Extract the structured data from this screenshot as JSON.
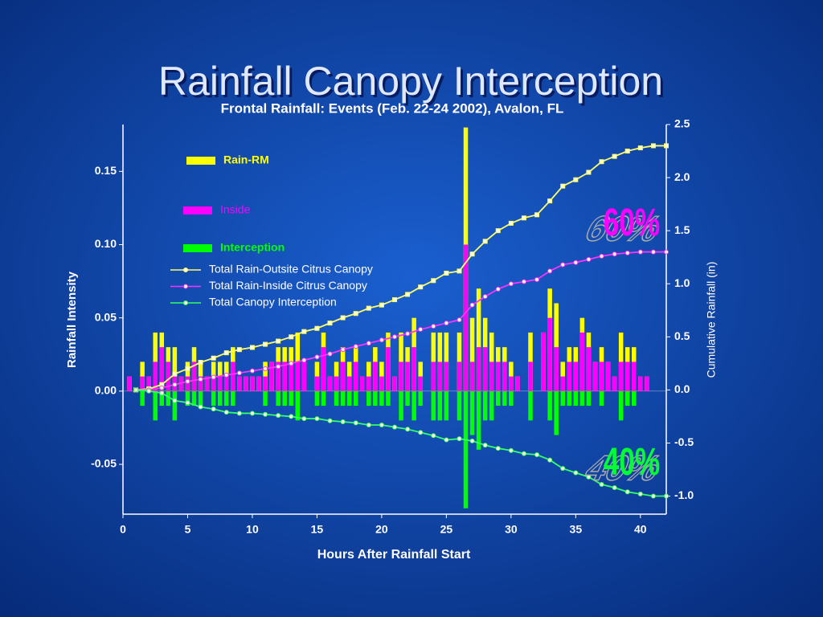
{
  "slide_title": "Rainfall Canopy Interception",
  "chart_data": {
    "type": "bar",
    "title": "Frontal Rainfall: Events (Feb. 22-24 2002), Avalon, FL",
    "x_label": "Hours After Rainfall Start",
    "y_label": "Rainfall Intensity",
    "y2_label": "Cumulative Rainfall (in)",
    "xlim": [
      0,
      42
    ],
    "xticks": [
      0,
      5,
      10,
      15,
      20,
      25,
      30,
      35,
      40
    ],
    "ylim": [
      -0.084,
      0.182
    ],
    "yticks": [
      -0.05,
      {
        "value": 0,
        "label": "0.00"
      },
      0.05,
      {
        "value": 0.1,
        "label": "0.10"
      },
      0.15
    ],
    "y2lim": [
      -1.17,
      2.5
    ],
    "y2ticks": [
      {
        "value": -1,
        "label": "-1.0"
      },
      -0.5,
      {
        "value": 0,
        "label": "0.0"
      },
      0.5,
      {
        "value": 1,
        "label": "1.0"
      },
      1.5,
      {
        "value": 2,
        "label": "2.0"
      },
      2.5
    ],
    "x": [
      0.5,
      1,
      1.5,
      2,
      2.5,
      3,
      3.5,
      4,
      4.5,
      5,
      5.5,
      6,
      6.5,
      7,
      7.5,
      8,
      8.5,
      9,
      9.5,
      10,
      10.5,
      11,
      11.5,
      12,
      12.5,
      13,
      13.5,
      14,
      14.5,
      15,
      15.5,
      16,
      16.5,
      17,
      17.5,
      18,
      18.5,
      19,
      19.5,
      20,
      20.5,
      21,
      21.5,
      22,
      22.5,
      23,
      23.5,
      24,
      24.5,
      25,
      25.5,
      26,
      26.5,
      27,
      27.5,
      28,
      28.5,
      29,
      29.5,
      30,
      30.5,
      31,
      31.5,
      32,
      32.5,
      33,
      33.5,
      34,
      34.5,
      35,
      35.5,
      36,
      36.5,
      37,
      37.5,
      38,
      38.5,
      39,
      39.5,
      40,
      40.5,
      41
    ],
    "series": [
      {
        "name": "Rain-RM",
        "type": "bar",
        "color": "#ffff00",
        "values": [
          0.01,
          0,
          0.02,
          0.01,
          0.04,
          0.04,
          0.03,
          0.03,
          0.01,
          0.02,
          0.03,
          0.02,
          0.01,
          0.02,
          0.02,
          0.02,
          0.03,
          0.01,
          0.01,
          0.01,
          0.01,
          0.02,
          0.02,
          0.03,
          0.03,
          0.03,
          0.04,
          0.02,
          0,
          0.02,
          0.04,
          0.01,
          0.02,
          0.03,
          0.02,
          0.03,
          0.01,
          0.02,
          0.03,
          0.02,
          0.04,
          0.01,
          0.04,
          0.03,
          0.05,
          0.02,
          0,
          0.04,
          0.04,
          0.04,
          0,
          0.04,
          0.18,
          0.05,
          0.07,
          0.05,
          0.04,
          0.03,
          0.03,
          0.02,
          0.01,
          0,
          0.04,
          0,
          0.04,
          0.07,
          0.06,
          0.02,
          0.03,
          0.03,
          0.05,
          0.04,
          0.02,
          0.03,
          0.02,
          0.01,
          0.04,
          0.03,
          0.03,
          0.01,
          0.01,
          0
        ]
      },
      {
        "name": "Inside",
        "type": "bar",
        "color": "#ff00ff",
        "values": [
          0.01,
          0,
          0.01,
          0.01,
          0.02,
          0.03,
          0.02,
          0.01,
          0.01,
          0.01,
          0.02,
          0.01,
          0.01,
          0.01,
          0.01,
          0.01,
          0.02,
          0.01,
          0.01,
          0.01,
          0.01,
          0.01,
          0.02,
          0.02,
          0.02,
          0.02,
          0.02,
          0.02,
          0,
          0.01,
          0.03,
          0.01,
          0.01,
          0.02,
          0.01,
          0.02,
          0.01,
          0.01,
          0.02,
          0.01,
          0.03,
          0.01,
          0.02,
          0.02,
          0.03,
          0.01,
          0,
          0.02,
          0.02,
          0.02,
          0,
          0.02,
          0.1,
          0.02,
          0.03,
          0.03,
          0.02,
          0.02,
          0.02,
          0.01,
          0.01,
          0,
          0.02,
          0,
          0.04,
          0.05,
          0.03,
          0.01,
          0.02,
          0.02,
          0.04,
          0.03,
          0.02,
          0.02,
          0.02,
          0.01,
          0.02,
          0.02,
          0.02,
          0.01,
          0.01,
          0
        ]
      },
      {
        "name": "Interception",
        "type": "bar",
        "color": "#00ff00",
        "values": [
          0,
          0,
          -0.01,
          0,
          -0.02,
          -0.01,
          -0.01,
          -0.02,
          0,
          -0.01,
          -0.01,
          -0.01,
          0,
          -0.01,
          -0.01,
          -0.01,
          -0.01,
          0,
          0,
          0,
          0,
          -0.01,
          0,
          -0.01,
          -0.01,
          -0.01,
          -0.02,
          0,
          0,
          -0.01,
          -0.01,
          0,
          -0.01,
          -0.01,
          -0.01,
          -0.01,
          0,
          -0.01,
          -0.01,
          -0.01,
          -0.01,
          0,
          -0.02,
          -0.01,
          -0.02,
          -0.01,
          0,
          -0.02,
          -0.02,
          -0.02,
          0,
          -0.02,
          -0.08,
          -0.03,
          -0.04,
          -0.02,
          -0.02,
          -0.01,
          -0.01,
          -0.01,
          0,
          0,
          -0.02,
          0,
          0,
          -0.02,
          -0.03,
          -0.01,
          -0.01,
          -0.01,
          -0.01,
          -0.01,
          0,
          -0.01,
          0,
          0,
          -0.02,
          -0.01,
          -0.01,
          0,
          0,
          0
        ]
      },
      {
        "name": "Total Rain-Outsite Citrus Canopy",
        "type": "line",
        "axis": "y2",
        "color": "#ffff66",
        "marker": "square",
        "x": [
          1,
          2,
          3,
          4,
          5,
          6,
          7,
          8,
          9,
          10,
          11,
          12,
          13,
          14,
          15,
          16,
          17,
          18,
          19,
          20,
          21,
          22,
          23,
          24,
          25,
          26,
          27,
          28,
          29,
          30,
          31,
          32,
          33,
          34,
          35,
          36,
          37,
          38,
          39,
          40,
          41,
          42
        ],
        "values": [
          0,
          0.01,
          0.05,
          0.15,
          0.2,
          0.26,
          0.3,
          0.35,
          0.38,
          0.4,
          0.43,
          0.46,
          0.5,
          0.55,
          0.58,
          0.63,
          0.68,
          0.72,
          0.77,
          0.8,
          0.85,
          0.9,
          0.97,
          1.03,
          1.1,
          1.12,
          1.28,
          1.4,
          1.5,
          1.57,
          1.62,
          1.65,
          1.78,
          1.92,
          1.98,
          2.05,
          2.15,
          2.2,
          2.25,
          2.28,
          2.3,
          2.3
        ]
      },
      {
        "name": "Total Rain-Inside Citrus Canopy",
        "type": "line",
        "axis": "y2",
        "color": "#ff33ff",
        "marker": "circle",
        "x": [
          1,
          2,
          3,
          4,
          5,
          6,
          7,
          8,
          9,
          10,
          11,
          12,
          13,
          14,
          15,
          16,
          17,
          18,
          19,
          20,
          21,
          22,
          23,
          24,
          25,
          26,
          27,
          28,
          29,
          30,
          31,
          32,
          33,
          34,
          35,
          36,
          37,
          38,
          39,
          40,
          41,
          42
        ],
        "values": [
          0,
          0,
          0.02,
          0.05,
          0.08,
          0.1,
          0.12,
          0.14,
          0.16,
          0.18,
          0.2,
          0.22,
          0.25,
          0.28,
          0.31,
          0.34,
          0.38,
          0.41,
          0.44,
          0.47,
          0.5,
          0.53,
          0.57,
          0.6,
          0.63,
          0.66,
          0.8,
          0.88,
          0.95,
          1,
          1.02,
          1.04,
          1.12,
          1.18,
          1.2,
          1.23,
          1.26,
          1.28,
          1.29,
          1.3,
          1.3,
          1.3
        ]
      },
      {
        "name": "Total Canopy Interception",
        "type": "line",
        "axis": "y2",
        "color": "#33ff66",
        "marker": "circle",
        "x": [
          1,
          2,
          3,
          4,
          5,
          6,
          7,
          8,
          9,
          10,
          11,
          12,
          13,
          14,
          15,
          16,
          17,
          18,
          19,
          20,
          21,
          22,
          23,
          24,
          25,
          26,
          27,
          28,
          29,
          30,
          31,
          32,
          33,
          34,
          35,
          36,
          37,
          38,
          39,
          40,
          41,
          42
        ],
        "values": [
          0,
          -0.01,
          -0.03,
          -0.1,
          -0.12,
          -0.16,
          -0.18,
          -0.21,
          -0.22,
          -0.22,
          -0.23,
          -0.24,
          -0.25,
          -0.27,
          -0.27,
          -0.29,
          -0.3,
          -0.31,
          -0.33,
          -0.33,
          -0.35,
          -0.37,
          -0.4,
          -0.43,
          -0.47,
          -0.46,
          -0.48,
          -0.52,
          -0.55,
          -0.57,
          -0.6,
          -0.61,
          -0.66,
          -0.74,
          -0.78,
          -0.82,
          -0.89,
          -0.92,
          -0.96,
          -0.98,
          -1,
          -1
        ]
      }
    ],
    "annotations": [
      {
        "text": "60%",
        "color": "#ff00ff"
      },
      {
        "text": "40%",
        "color": "#00ff33"
      }
    ]
  }
}
